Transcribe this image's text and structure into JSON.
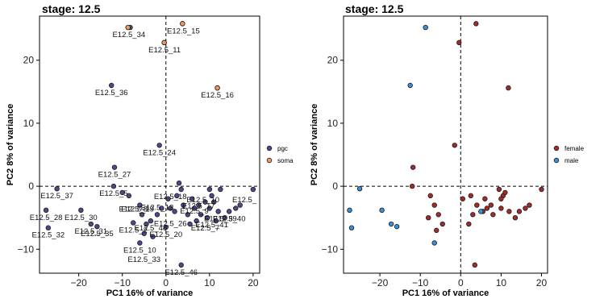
{
  "chart_data": [
    {
      "type": "scatter",
      "title": "stage: 12.5",
      "xlabel": "PC1 16% of variance",
      "ylabel": "PC2 8% of variance",
      "xlim": [
        -29,
        21.5
      ],
      "ylim": [
        -13.8,
        27
      ],
      "xticks": [
        -20,
        -10,
        0,
        10,
        20
      ],
      "yticks": [
        -10,
        0,
        10,
        20
      ],
      "reference_lines": {
        "x": 0,
        "y": 0,
        "style": "dashed"
      },
      "grid": false,
      "legend": {
        "placement": "right",
        "entries": [
          {
            "label": "pgc",
            "color": "#4a4a8c"
          },
          {
            "label": "soma",
            "color": "#ef9a60"
          }
        ]
      },
      "series": [
        {
          "name": "pgc",
          "color": "#4a4a8c",
          "points": [
            [
              -8.2,
              25.2
            ],
            [
              3.8,
              25.8
            ],
            [
              -0.4,
              22.8
            ],
            [
              11.8,
              15.6
            ],
            [
              -12.5,
              16.0
            ],
            [
              -1.5,
              6.5
            ],
            [
              -11.8,
              3.0
            ],
            [
              -25.0,
              -0.4
            ],
            [
              -12.0,
              0.0
            ],
            [
              -27.5,
              -3.8
            ],
            [
              -19.5,
              -3.8
            ],
            [
              -27.0,
              -6.6
            ],
            [
              -17.2,
              -6.0
            ],
            [
              -15.8,
              -6.4
            ],
            [
              -7.5,
              -5.8
            ],
            [
              -8.5,
              -1.5
            ],
            [
              -6.0,
              -3.0
            ],
            [
              -5.5,
              -4.5
            ],
            [
              -4.5,
              -6.0
            ],
            [
              -3.5,
              -5.5
            ],
            [
              -2.0,
              -4.5
            ],
            [
              -1.0,
              -3.5
            ],
            [
              0.0,
              -6.5
            ],
            [
              -5.0,
              -7.5
            ],
            [
              -6.0,
              -9.0
            ],
            [
              -3.0,
              -8.0
            ],
            [
              3.5,
              -12.5
            ],
            [
              0.5,
              -2.0
            ],
            [
              1.0,
              -3.5
            ],
            [
              2.0,
              -4.0
            ],
            [
              2.5,
              -1.5
            ],
            [
              3.5,
              -0.5
            ],
            [
              4.0,
              -3.0
            ],
            [
              5.0,
              -4.5
            ],
            [
              6.0,
              -2.0
            ],
            [
              6.5,
              -3.5
            ],
            [
              7.5,
              -3.0
            ],
            [
              8.0,
              -4.5
            ],
            [
              9.0,
              -2.5
            ],
            [
              10.0,
              -3.5
            ],
            [
              10.0,
              -0.5
            ],
            [
              10.5,
              -1.5
            ],
            [
              11.0,
              -2.5
            ],
            [
              12.0,
              -4.0
            ],
            [
              12.5,
              -0.5
            ],
            [
              13.5,
              -5.0
            ],
            [
              14.5,
              -4.0
            ],
            [
              16.0,
              -3.5
            ],
            [
              17.0,
              -3.0
            ],
            [
              20.0,
              -0.5
            ],
            [
              5.5,
              -6.0
            ],
            [
              7.0,
              -5.5
            ],
            [
              9.5,
              -5.0
            ],
            [
              11.5,
              -5.5
            ],
            [
              3.0,
              0.5
            ],
            [
              -10.0,
              -1.0
            ]
          ]
        },
        {
          "name": "soma",
          "color": "#ef9a60",
          "points": [
            [
              -8.7,
              25.2
            ],
            [
              3.8,
              25.8
            ],
            [
              -0.4,
              22.8
            ],
            [
              11.8,
              15.6
            ]
          ]
        }
      ],
      "annotations": [
        {
          "text": "E12.5_34",
          "x": -8.5,
          "y": 25.2
        },
        {
          "text": "E12.5_15",
          "x": 4.0,
          "y": 25.8
        },
        {
          "text": "E12.5_11",
          "x": -0.3,
          "y": 22.8
        },
        {
          "text": "E12.5_16",
          "x": 11.8,
          "y": 15.6
        },
        {
          "text": "E12.5_36",
          "x": -12.5,
          "y": 16.0
        },
        {
          "text": "E12.5_24",
          "x": -1.5,
          "y": 6.5
        },
        {
          "text": "E12.5_27",
          "x": -11.8,
          "y": 3.0
        },
        {
          "text": "E12.5_37",
          "x": -25.0,
          "y": -0.4
        },
        {
          "text": "E12.5_5",
          "x": -12.0,
          "y": 0.0
        },
        {
          "text": "E12.5_18",
          "x": 1.0,
          "y": -0.5
        },
        {
          "text": "E12.5_10",
          "x": 8.5,
          "y": -1.0
        },
        {
          "text": "E12.5_",
          "x": 18.0,
          "y": -1.0
        },
        {
          "text": "E12.5_28",
          "x": -27.5,
          "y": -3.8
        },
        {
          "text": "E12.5_30",
          "x": -19.5,
          "y": -3.8
        },
        {
          "text": "E12.5_8",
          "x": -7.5,
          "y": -2.5
        },
        {
          "text": "E12.5_19",
          "x": -6.5,
          "y": -2.5
        },
        {
          "text": "E12.5_13",
          "x": -2.0,
          "y": -2.2
        },
        {
          "text": "E12.5_17",
          "x": 7.5,
          "y": -2.0
        },
        {
          "text": "E12.5_9",
          "x": 6.5,
          "y": -2.8
        },
        {
          "text": "E12.5_32",
          "x": -27.0,
          "y": -6.6
        },
        {
          "text": "E12.5_31",
          "x": -17.2,
          "y": -6.0
        },
        {
          "text": "E12.5_35",
          "x": -15.8,
          "y": -6.4
        },
        {
          "text": "E12.5_2",
          "x": -7.5,
          "y": -5.8
        },
        {
          "text": "E12.5_48",
          "x": -3.5,
          "y": -5.5
        },
        {
          "text": "E12.5_26",
          "x": 1.0,
          "y": -4.8
        },
        {
          "text": "E12.5_39",
          "x": 12.5,
          "y": -4.0
        },
        {
          "text": "E12.5_40",
          "x": 14.5,
          "y": -4.0
        },
        {
          "text": "E12.5_41",
          "x": 10.5,
          "y": -5.0
        },
        {
          "text": "E12.5_7",
          "x": 9.0,
          "y": -5.5
        },
        {
          "text": "E12.5_20",
          "x": 0.0,
          "y": -6.5
        },
        {
          "text": "E12.5_10",
          "x": -6.0,
          "y": -9.0
        },
        {
          "text": "E12.5_33",
          "x": -5.0,
          "y": -10.5
        },
        {
          "text": "E12.5_46",
          "x": 3.5,
          "y": -12.5
        }
      ]
    },
    {
      "type": "scatter",
      "title": "stage: 12.5",
      "xlabel": "PC1 16% of variance",
      "ylabel": "PC2 8% of variance",
      "xlim": [
        -29,
        21.5
      ],
      "ylim": [
        -13.8,
        27
      ],
      "xticks": [
        -20,
        -10,
        0,
        10,
        20
      ],
      "yticks": [
        -10,
        0,
        10,
        20
      ],
      "reference_lines": {
        "x": 0,
        "y": 0,
        "style": "dashed"
      },
      "grid": false,
      "legend": {
        "placement": "right",
        "entries": [
          {
            "label": "female",
            "color": "#a52a2a"
          },
          {
            "label": "male",
            "color": "#3a8fd6"
          }
        ]
      },
      "series": [
        {
          "name": "female",
          "color": "#a52a2a",
          "points": [
            [
              3.8,
              25.8
            ],
            [
              -0.4,
              22.8
            ],
            [
              11.8,
              15.6
            ],
            [
              -1.5,
              6.5
            ],
            [
              -11.8,
              3.0
            ],
            [
              -12.0,
              0.0
            ],
            [
              -7.5,
              -1.5
            ],
            [
              -6.5,
              -3.0
            ],
            [
              -5.5,
              -4.5
            ],
            [
              -8.0,
              -5.0
            ],
            [
              -6.0,
              -7.0
            ],
            [
              -4.5,
              -6.0
            ],
            [
              3.5,
              -12.5
            ],
            [
              2.0,
              -6.0
            ],
            [
              0.5,
              -2.0
            ],
            [
              2.5,
              -1.5
            ],
            [
              4.0,
              -3.0
            ],
            [
              3.0,
              -4.5
            ],
            [
              6.0,
              -2.0
            ],
            [
              6.5,
              -3.5
            ],
            [
              7.5,
              -3.0
            ],
            [
              8.0,
              -4.5
            ],
            [
              9.5,
              -0.5
            ],
            [
              10.0,
              -3.5
            ],
            [
              10.5,
              -1.5
            ],
            [
              11.0,
              -1.0
            ],
            [
              12.0,
              -4.0
            ],
            [
              13.5,
              -5.0
            ],
            [
              14.5,
              -4.0
            ],
            [
              16.0,
              -3.5
            ],
            [
              17.0,
              -3.0
            ],
            [
              20.0,
              -0.5
            ],
            [
              5.5,
              -4.0
            ],
            [
              10.0,
              -2.0
            ]
          ]
        },
        {
          "name": "male",
          "color": "#3a8fd6",
          "points": [
            [
              -8.7,
              25.2
            ],
            [
              -12.5,
              16.0
            ],
            [
              -25.0,
              -0.4
            ],
            [
              -27.5,
              -3.8
            ],
            [
              -19.5,
              -3.8
            ],
            [
              -27.0,
              -6.6
            ],
            [
              -17.2,
              -6.0
            ],
            [
              -15.8,
              -6.4
            ],
            [
              -6.5,
              -9.0
            ],
            [
              5.0,
              -4.0
            ]
          ]
        }
      ]
    }
  ]
}
